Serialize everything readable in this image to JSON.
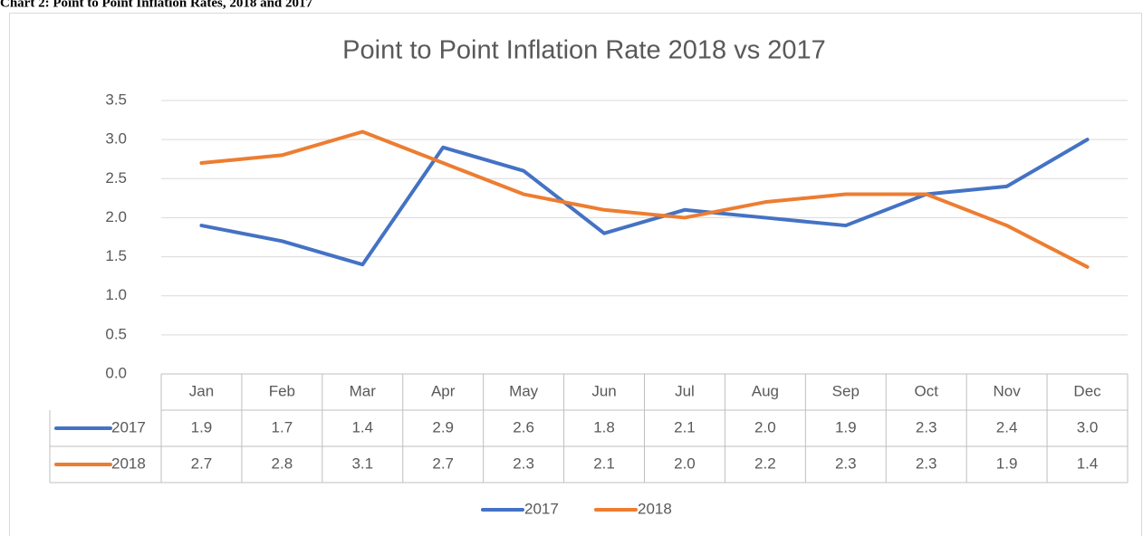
{
  "caption": "Chart 2: Point to Point Inflation Rates, 2018 and 2017",
  "chart_data": {
    "type": "line",
    "title": "Point to Point Inflation Rate 2018 vs 2017",
    "categories": [
      "Jan",
      "Feb",
      "Mar",
      "Apr",
      "May",
      "Jun",
      "Jul",
      "Aug",
      "Sep",
      "Oct",
      "Nov",
      "Dec"
    ],
    "series": [
      {
        "name": "2017",
        "color": "#4472c4",
        "values": [
          1.9,
          1.7,
          1.4,
          2.9,
          2.6,
          1.8,
          2.1,
          2.0,
          1.9,
          2.3,
          2.4,
          3.0
        ],
        "value_labels": [
          "1.9",
          "1.7",
          "1.4",
          "2.9",
          "2.6",
          "1.8",
          "2.1",
          "2.0",
          "1.9",
          "2.3",
          "2.4",
          "3.0"
        ]
      },
      {
        "name": "2018",
        "color": "#ed7d31",
        "values": [
          2.7,
          2.8,
          3.1,
          2.7,
          2.3,
          2.1,
          2.0,
          2.2,
          2.3,
          2.3,
          1.9,
          1.37
        ],
        "value_labels": [
          "2.7",
          "2.8",
          "3.1",
          "2.7",
          "2.3",
          "2.1",
          "2.0",
          "2.2",
          "2.3",
          "2.3",
          "1.9",
          "1.4"
        ]
      }
    ],
    "ylim": [
      0,
      3.5
    ],
    "yticks": [
      {
        "value": 0,
        "label": "0.0"
      },
      0.5,
      {
        "value": 1,
        "label": "1.0"
      },
      1.5,
      {
        "value": 2,
        "label": "2.0"
      },
      2.5,
      {
        "value": 3,
        "label": "3.0"
      },
      3.5
    ],
    "grid": true,
    "legend": "bottom",
    "data_table": true
  }
}
